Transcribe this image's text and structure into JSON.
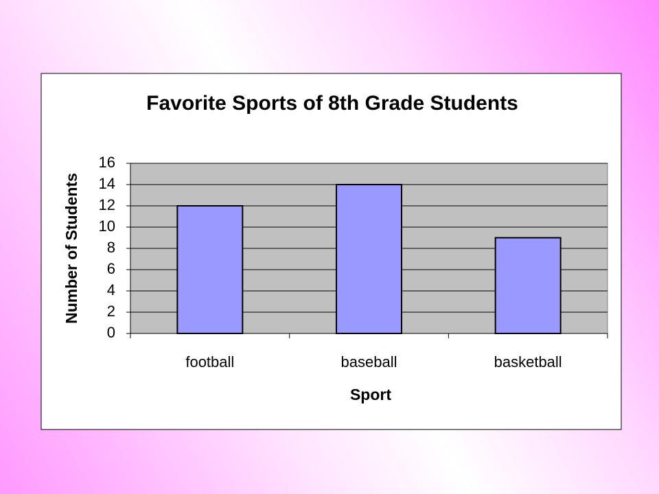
{
  "chart_data": {
    "type": "bar",
    "title": "Favorite Sports of 8th Grade Students",
    "x_label": "Sport",
    "y_label": "Number of Students",
    "categories": [
      "football",
      "baseball",
      "basketball"
    ],
    "values": [
      12,
      14,
      9
    ],
    "color": "#9999ff",
    "ylim": [
      0,
      16
    ],
    "yticks": [
      0,
      2,
      4,
      6,
      8,
      10,
      12,
      14,
      16
    ],
    "grid": true
  }
}
